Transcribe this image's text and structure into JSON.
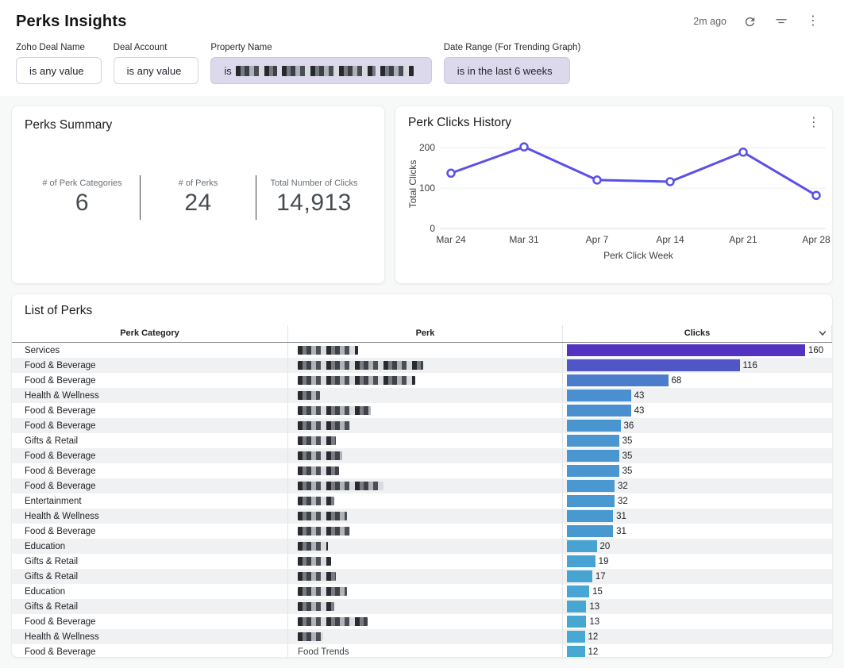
{
  "header": {
    "title": "Perks Insights",
    "last_refresh": "2m ago"
  },
  "icons": {
    "refresh": "refresh-icon",
    "filter": "filter-icon",
    "kebab": "kebab-menu-icon",
    "sort": "chevron-down-icon"
  },
  "colors": {
    "accent_line": "#5b50e8",
    "bar_high": "#5433c1",
    "bar_low": "#47a8d3",
    "active_chip_bg": "#dcd9ed"
  },
  "filters": [
    {
      "label": "Zoho Deal Name",
      "value": "is any value",
      "active": false,
      "redacted": false
    },
    {
      "label": "Deal Account",
      "value": "is any value",
      "active": false,
      "redacted": false
    },
    {
      "label": "Property Name",
      "value": "is",
      "active": true,
      "redacted": true,
      "mask_widths": [
        52,
        118,
        42
      ]
    },
    {
      "label": "Date Range (For Trending Graph)",
      "value": "is in the last 6 weeks",
      "active": true,
      "redacted": false
    }
  ],
  "summary": {
    "title": "Perks Summary",
    "kpis": [
      {
        "label": "# of Perk Categories",
        "value": "6"
      },
      {
        "label": "# of Perks",
        "value": "24"
      },
      {
        "label": "Total Number of Clicks",
        "value": "14,913"
      }
    ]
  },
  "chart_data": {
    "type": "line",
    "title": "Perk Clicks History",
    "x": [
      "Mar 24",
      "Mar 31",
      "Apr 7",
      "Apr 14",
      "Apr 21",
      "Apr 28"
    ],
    "values": [
      137,
      202,
      120,
      116,
      189,
      82
    ],
    "xlabel": "Perk Click Week",
    "ylabel": "Total Clicks",
    "ylim": [
      0,
      220
    ],
    "yticks": [
      0,
      100,
      200
    ],
    "line_color": "#5b50e8",
    "grid": true,
    "legend": false
  },
  "table": {
    "title": "List of Perks",
    "columns": [
      "Perk Category",
      "Perk",
      "Clicks"
    ],
    "bar_max": 160,
    "bar_color_high": "#5433c1",
    "bar_color_low": "#47a8d3",
    "rows": [
      {
        "category": "Services",
        "perk": "",
        "redacted": true,
        "mask_width": 76,
        "clicks": 160
      },
      {
        "category": "Food & Beverage",
        "perk": "",
        "redacted": true,
        "mask_width": 158,
        "clicks": 116
      },
      {
        "category": "Food & Beverage",
        "perk": "",
        "redacted": true,
        "mask_width": 148,
        "clicks": 68
      },
      {
        "category": "Health & Wellness",
        "perk": "",
        "redacted": true,
        "mask_width": 28,
        "clicks": 43
      },
      {
        "category": "Food & Beverage",
        "perk": "",
        "redacted": true,
        "mask_width": 92,
        "clicks": 43
      },
      {
        "category": "Food & Beverage",
        "perk": "",
        "redacted": true,
        "mask_width": 66,
        "clicks": 36
      },
      {
        "category": "Gifts & Retail",
        "perk": "",
        "redacted": true,
        "mask_width": 48,
        "clicks": 35
      },
      {
        "category": "Food & Beverage",
        "perk": "",
        "redacted": true,
        "mask_width": 56,
        "clicks": 35
      },
      {
        "category": "Food & Beverage",
        "perk": "",
        "redacted": true,
        "mask_width": 52,
        "clicks": 35
      },
      {
        "category": "Food & Beverage",
        "perk": "",
        "redacted": true,
        "mask_width": 108,
        "clicks": 32
      },
      {
        "category": "Entertainment",
        "perk": "",
        "redacted": true,
        "mask_width": 46,
        "clicks": 32
      },
      {
        "category": "Health & Wellness",
        "perk": "",
        "redacted": true,
        "mask_width": 62,
        "clicks": 31
      },
      {
        "category": "Food & Beverage",
        "perk": "",
        "redacted": true,
        "mask_width": 66,
        "clicks": 31
      },
      {
        "category": "Education",
        "perk": "",
        "redacted": true,
        "mask_width": 38,
        "clicks": 20
      },
      {
        "category": "Gifts & Retail",
        "perk": "",
        "redacted": true,
        "mask_width": 42,
        "clicks": 19
      },
      {
        "category": "Gifts & Retail",
        "perk": "",
        "redacted": true,
        "mask_width": 48,
        "clicks": 17
      },
      {
        "category": "Education",
        "perk": "",
        "redacted": true,
        "mask_width": 62,
        "clicks": 15
      },
      {
        "category": "Gifts & Retail",
        "perk": "",
        "redacted": true,
        "mask_width": 46,
        "clicks": 13
      },
      {
        "category": "Food & Beverage",
        "perk": "",
        "redacted": true,
        "mask_width": 88,
        "clicks": 13
      },
      {
        "category": "Health & Wellness",
        "perk": "",
        "redacted": true,
        "mask_width": 32,
        "clicks": 12
      },
      {
        "category": "Food & Beverage",
        "perk": "Food Trends",
        "redacted": false,
        "mask_width": 0,
        "clicks": 12
      }
    ]
  }
}
